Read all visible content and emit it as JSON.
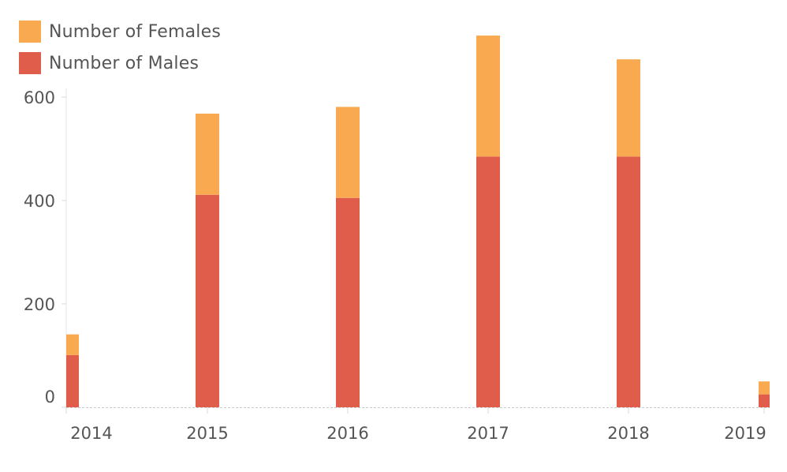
{
  "chart_data": {
    "type": "bar",
    "stacked": true,
    "categories": [
      "2014",
      "2015",
      "2016",
      "2017",
      "2018",
      "2019"
    ],
    "series": [
      {
        "name": "Number of Males",
        "color": "#e05c4b",
        "values": [
          101,
          411,
          405,
          485,
          485,
          25
        ]
      },
      {
        "name": "Number of Females",
        "color": "#f9a94f",
        "values": [
          40,
          157,
          176,
          234,
          188,
          25
        ]
      }
    ],
    "yticks": [
      0,
      200,
      400,
      600
    ],
    "ylim": [
      0,
      720
    ],
    "grid": false,
    "legend_position": "top-left",
    "title": "",
    "xlabel": "",
    "ylabel": ""
  }
}
